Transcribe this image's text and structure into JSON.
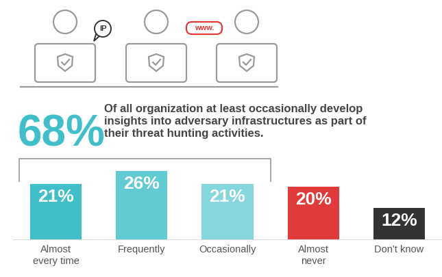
{
  "chart_data": {
    "type": "bar",
    "headline": "68%",
    "subtitle": "Of all organization at least occasionally develop insights into adversary infrastructures as part of their threat hunting activities.",
    "icon_labels": [
      "IP",
      "www."
    ],
    "categories": [
      "Almost every time",
      "Frequently",
      "Occasionally",
      "Almost never",
      "Don't know"
    ],
    "values": [
      21,
      26,
      21,
      20,
      12
    ],
    "value_labels": [
      "21%",
      "26%",
      "21%",
      "20%",
      "12%"
    ],
    "colors": [
      "#41bfc9",
      "#62cad3",
      "#86d6dd",
      "#e03a3a",
      "#333333"
    ],
    "data_labels": true,
    "tick_labels": "x"
  }
}
